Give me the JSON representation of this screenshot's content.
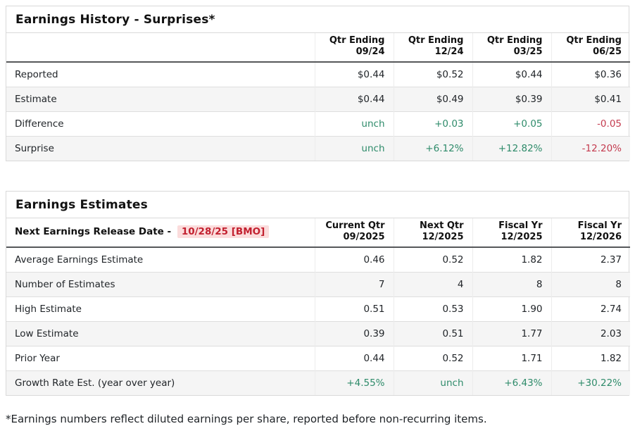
{
  "colors": {
    "positive": "#2e8b6a",
    "negative": "#c43b4f",
    "highlight_bg": "#fbdcdc",
    "highlight_text": "#c2202f",
    "header_rule": "#56585a",
    "border": "#d9d9d9",
    "stripe": "#f5f5f5",
    "text": "#212529",
    "title": "#111111"
  },
  "surprises": {
    "title": "Earnings History - Surprises*",
    "columns": [
      {
        "line1": "Qtr Ending",
        "line2": "09/24"
      },
      {
        "line1": "Qtr Ending",
        "line2": "12/24"
      },
      {
        "line1": "Qtr Ending",
        "line2": "03/25"
      },
      {
        "line1": "Qtr Ending",
        "line2": "06/25"
      }
    ],
    "rows": [
      {
        "label": "Reported",
        "values": [
          "$0.44",
          "$0.52",
          "$0.44",
          "$0.36"
        ],
        "tones": [
          "",
          "",
          "",
          ""
        ]
      },
      {
        "label": "Estimate",
        "values": [
          "$0.44",
          "$0.49",
          "$0.39",
          "$0.41"
        ],
        "tones": [
          "",
          "",
          "",
          ""
        ]
      },
      {
        "label": "Difference",
        "values": [
          "unch",
          "+0.03",
          "+0.05",
          "-0.05"
        ],
        "tones": [
          "pos",
          "pos",
          "pos",
          "neg"
        ]
      },
      {
        "label": "Surprise",
        "values": [
          "unch",
          "+6.12%",
          "+12.82%",
          "-12.20%"
        ],
        "tones": [
          "pos",
          "pos",
          "pos",
          "neg"
        ]
      }
    ]
  },
  "estimates": {
    "title": "Earnings Estimates",
    "release_date_label": "Next Earnings Release Date -",
    "release_date_value": "10/28/25 [BMO]",
    "columns": [
      {
        "line1": "Current Qtr",
        "line2": "09/2025"
      },
      {
        "line1": "Next Qtr",
        "line2": "12/2025"
      },
      {
        "line1": "Fiscal Yr",
        "line2": "12/2025"
      },
      {
        "line1": "Fiscal Yr",
        "line2": "12/2026"
      }
    ],
    "rows": [
      {
        "label": "Average Earnings Estimate",
        "values": [
          "0.46",
          "0.52",
          "1.82",
          "2.37"
        ],
        "tones": [
          "",
          "",
          "",
          ""
        ]
      },
      {
        "label": "Number of Estimates",
        "values": [
          "7",
          "4",
          "8",
          "8"
        ],
        "tones": [
          "",
          "",
          "",
          ""
        ]
      },
      {
        "label": "High Estimate",
        "values": [
          "0.51",
          "0.53",
          "1.90",
          "2.74"
        ],
        "tones": [
          "",
          "",
          "",
          ""
        ]
      },
      {
        "label": "Low Estimate",
        "values": [
          "0.39",
          "0.51",
          "1.77",
          "2.03"
        ],
        "tones": [
          "",
          "",
          "",
          ""
        ]
      },
      {
        "label": "Prior Year",
        "values": [
          "0.44",
          "0.52",
          "1.71",
          "1.82"
        ],
        "tones": [
          "",
          "",
          "",
          ""
        ]
      },
      {
        "label": "Growth Rate Est. (year over year)",
        "values": [
          "+4.55%",
          "unch",
          "+6.43%",
          "+30.22%"
        ],
        "tones": [
          "pos",
          "pos",
          "pos",
          "pos"
        ]
      }
    ]
  },
  "footnote": "*Earnings numbers reflect diluted earnings per share, reported before non-recurring items."
}
